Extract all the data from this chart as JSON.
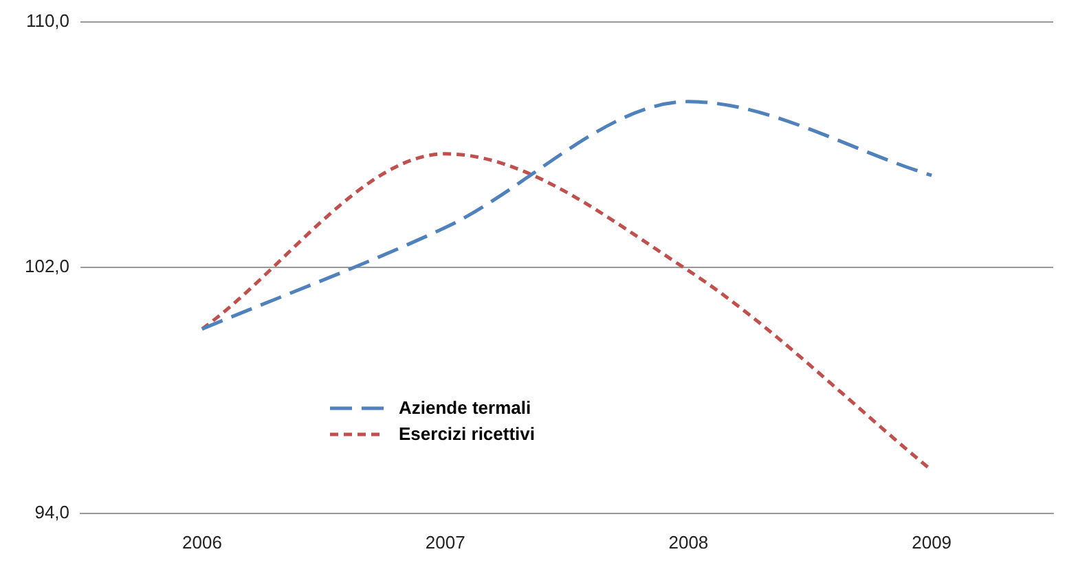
{
  "chart_data": {
    "type": "line",
    "categories": [
      "2006",
      "2007",
      "2008",
      "2009"
    ],
    "series": [
      {
        "name": "Aziende termali",
        "color": "#4f81bd",
        "values": [
          100,
          103.3,
          107.4,
          105.0
        ]
      },
      {
        "name": "Esercizi ricettivi",
        "color": "#c0504d",
        "values": [
          100,
          105.7,
          101.9,
          95.4
        ]
      }
    ],
    "ylim": [
      94,
      110
    ],
    "yticks": [
      {
        "value": 94,
        "label": "94,0"
      },
      {
        "value": 102,
        "label": "102,0"
      },
      {
        "value": 110,
        "label": "110,0"
      }
    ],
    "grid": "y",
    "legend": "bottom left",
    "line_style": "dashed",
    "marker": "none"
  }
}
